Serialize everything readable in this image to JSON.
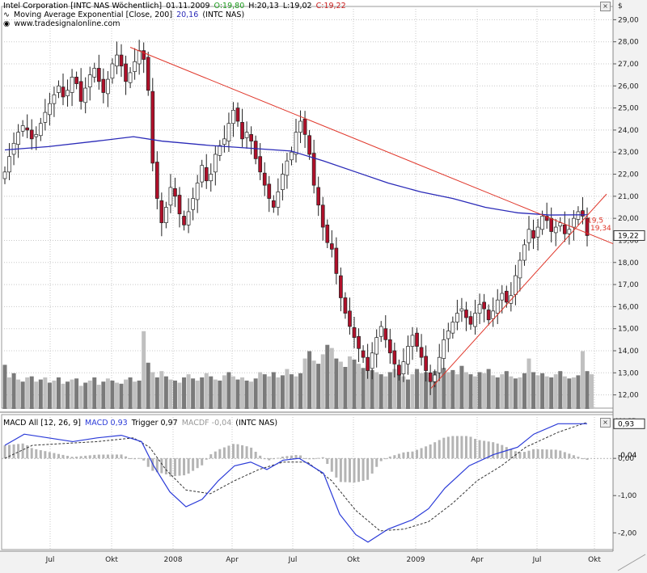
{
  "header": {
    "company": "Intel Corporation [INTC NAS  Wöchentlich]",
    "date": "01.11.2009",
    "open": "O:19,80",
    "high": "H:20,13",
    "low": "L:19,02",
    "close": "C:19,22",
    "ma_label": "Moving Average Exponential [Close, 200]",
    "ma_value": "20,16",
    "ma_symbol": "(INTC NAS)",
    "website": "www.tradesignalonline.com"
  },
  "macd_header": {
    "label": "MACD All [12, 26, 9]",
    "macd": "MACD 0,93",
    "trigger": "Trigger 0,97",
    "macdf": "MACDF -0,04",
    "symbol": "(INTC NAS)"
  },
  "axis": {
    "currency": "$",
    "macd_title": "MACD",
    "price_badge": "19,22",
    "macd_badge": "0,93",
    "macdf_badge": "-0,04",
    "trend_label_1": "19,5",
    "trend_label_2": "19,34",
    "close_glyph": "×",
    "price_ticks": [
      "29,00",
      "28,00",
      "27,00",
      "26,00",
      "25,00",
      "24,00",
      "23,00",
      "22,00",
      "21,00",
      "20,00",
      "19,00",
      "18,00",
      "17,00",
      "16,00",
      "15,00",
      "14,00",
      "13,00",
      "12,00"
    ],
    "macd_ticks": [
      "0,00",
      "-1,00",
      "-2,00"
    ],
    "x_ticks": [
      "Jul",
      "Okt",
      "2008",
      "Apr",
      "Jul",
      "Okt",
      "2009",
      "Apr",
      "Jul",
      "Okt"
    ]
  },
  "colors": {
    "up": "#ffffff",
    "down": "#b0102a",
    "ma200": "#2a2ab8",
    "trend": "#e0362a",
    "volume_dark": "#7a7a7a",
    "volume_light": "#c0c0c0",
    "macd_line": "#2a3ad8",
    "trigger_line": "#333333",
    "macdf_bar": "#b4b4b4",
    "grid": "#c8c8c8",
    "up_value": "#1a9a1a",
    "down_value": "#c81a1a"
  },
  "chart_data": {
    "type": "candlestick",
    "interval": "weekly",
    "ylim": [
      11.4,
      29.6
    ],
    "macd_ylim": [
      -2.45,
      0.85
    ],
    "close_series": [
      22.1,
      22.8,
      23.4,
      23.9,
      24.2,
      24.0,
      23.6,
      23.8,
      24.3,
      24.8,
      25.2,
      25.6,
      26.0,
      25.5,
      25.8,
      26.4,
      26.1,
      25.3,
      25.9,
      26.5,
      26.8,
      26.2,
      25.7,
      26.3,
      27.0,
      27.4,
      26.9,
      26.2,
      26.6,
      27.1,
      27.6,
      27.2,
      25.8,
      22.5,
      20.9,
      19.8,
      20.5,
      21.4,
      21.0,
      20.2,
      19.7,
      20.3,
      20.9,
      21.6,
      22.4,
      21.7,
      22.0,
      22.9,
      23.3,
      23.6,
      24.3,
      24.9,
      24.4,
      23.6,
      23.9,
      23.5,
      22.7,
      22.1,
      21.5,
      20.9,
      20.5,
      21.2,
      22.0,
      22.6,
      23.0,
      23.9,
      24.4,
      23.8,
      22.9,
      21.5,
      20.6,
      19.6,
      18.9,
      18.6,
      17.5,
      16.4,
      15.7,
      15.1,
      14.6,
      14.1,
      13.7,
      13.1,
      13.9,
      14.6,
      15.1,
      14.5,
      13.9,
      13.4,
      12.9,
      13.5,
      14.2,
      14.7,
      14.2,
      13.7,
      13.1,
      12.6,
      12.9,
      13.7,
      14.5,
      14.9,
      15.3,
      15.7,
      15.9,
      15.5,
      15.2,
      15.7,
      16.1,
      15.9,
      15.4,
      15.8,
      16.3,
      16.6,
      16.2,
      16.5,
      17.4,
      18.1,
      18.8,
      19.5,
      19.1,
      19.6,
      20.1,
      19.9,
      19.4,
      19.6,
      19.8,
      19.3,
      19.5,
      20.0,
      20.3,
      20.1,
      19.22
    ],
    "volume_relative": [
      0.42,
      0.3,
      0.34,
      0.28,
      0.26,
      0.3,
      0.31,
      0.26,
      0.28,
      0.3,
      0.25,
      0.27,
      0.3,
      0.24,
      0.26,
      0.28,
      0.29,
      0.22,
      0.25,
      0.27,
      0.3,
      0.23,
      0.26,
      0.29,
      0.27,
      0.25,
      0.24,
      0.28,
      0.3,
      0.26,
      0.27,
      0.74,
      0.44,
      0.35,
      0.3,
      0.36,
      0.31,
      0.28,
      0.27,
      0.25,
      0.3,
      0.33,
      0.29,
      0.27,
      0.3,
      0.34,
      0.31,
      0.28,
      0.27,
      0.32,
      0.35,
      0.31,
      0.28,
      0.3,
      0.27,
      0.26,
      0.29,
      0.35,
      0.33,
      0.31,
      0.35,
      0.3,
      0.32,
      0.38,
      0.33,
      0.31,
      0.34,
      0.48,
      0.55,
      0.46,
      0.43,
      0.52,
      0.61,
      0.58,
      0.48,
      0.45,
      0.4,
      0.5,
      0.47,
      0.43,
      0.39,
      0.41,
      0.37,
      0.35,
      0.33,
      0.31,
      0.35,
      0.38,
      0.34,
      0.31,
      0.28,
      0.33,
      0.38,
      0.34,
      0.35,
      0.3,
      0.36,
      0.42,
      0.39,
      0.35,
      0.37,
      0.33,
      0.41,
      0.35,
      0.33,
      0.31,
      0.35,
      0.34,
      0.38,
      0.32,
      0.3,
      0.33,
      0.36,
      0.31,
      0.29,
      0.3,
      0.34,
      0.48,
      0.35,
      0.32,
      0.34,
      0.31,
      0.3,
      0.33,
      0.36,
      0.31,
      0.29,
      0.3,
      0.32,
      0.55,
      0.36,
      0.33
    ]
  }
}
